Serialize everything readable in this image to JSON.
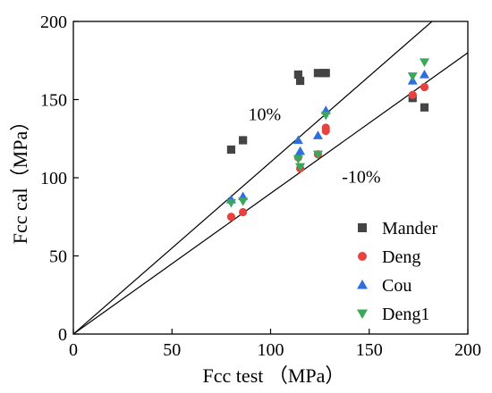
{
  "chart_data": {
    "type": "scatter",
    "title": "",
    "xlabel": "Fcc  test （MPa）",
    "ylabel": "Fcc cal（MPa）",
    "xlim": [
      0,
      200
    ],
    "ylim": [
      0,
      200
    ],
    "xticks": [
      "0",
      "50",
      "100",
      "150",
      "200"
    ],
    "yticks": [
      "0",
      "50",
      "100",
      "150",
      "200"
    ],
    "legend_position": "bottom-right",
    "reference_lines": [
      {
        "label": "10%",
        "slope": 1.1
      },
      {
        "label": "-10%",
        "slope": 0.9
      }
    ],
    "series": [
      {
        "name": "Mander",
        "marker": "square",
        "color": "#444444",
        "points": [
          [
            80,
            118
          ],
          [
            86,
            124
          ],
          [
            114,
            166
          ],
          [
            115,
            162
          ],
          [
            124,
            167
          ],
          [
            127,
            167
          ],
          [
            128,
            167
          ],
          [
            172,
            151
          ],
          [
            178,
            145
          ]
        ]
      },
      {
        "name": "Deng",
        "marker": "circle",
        "color": "#e8423f",
        "points": [
          [
            80,
            75
          ],
          [
            86,
            78
          ],
          [
            114,
            113
          ],
          [
            115,
            106
          ],
          [
            124,
            115
          ],
          [
            128,
            130
          ],
          [
            128,
            132
          ],
          [
            172,
            153
          ],
          [
            178,
            158
          ]
        ]
      },
      {
        "name": "Cou",
        "marker": "triangle-up",
        "color": "#2f6fdc",
        "points": [
          [
            80,
            86
          ],
          [
            86,
            88
          ],
          [
            114,
            124
          ],
          [
            115,
            117
          ],
          [
            124,
            127
          ],
          [
            128,
            143
          ],
          [
            172,
            162
          ],
          [
            178,
            166
          ]
        ]
      },
      {
        "name": "Deng1",
        "marker": "triangle-down",
        "color": "#3aa85a",
        "points": [
          [
            80,
            84
          ],
          [
            86,
            85
          ],
          [
            114,
            112
          ],
          [
            115,
            107
          ],
          [
            124,
            115
          ],
          [
            128,
            140
          ],
          [
            172,
            165
          ],
          [
            178,
            174
          ]
        ]
      }
    ]
  }
}
